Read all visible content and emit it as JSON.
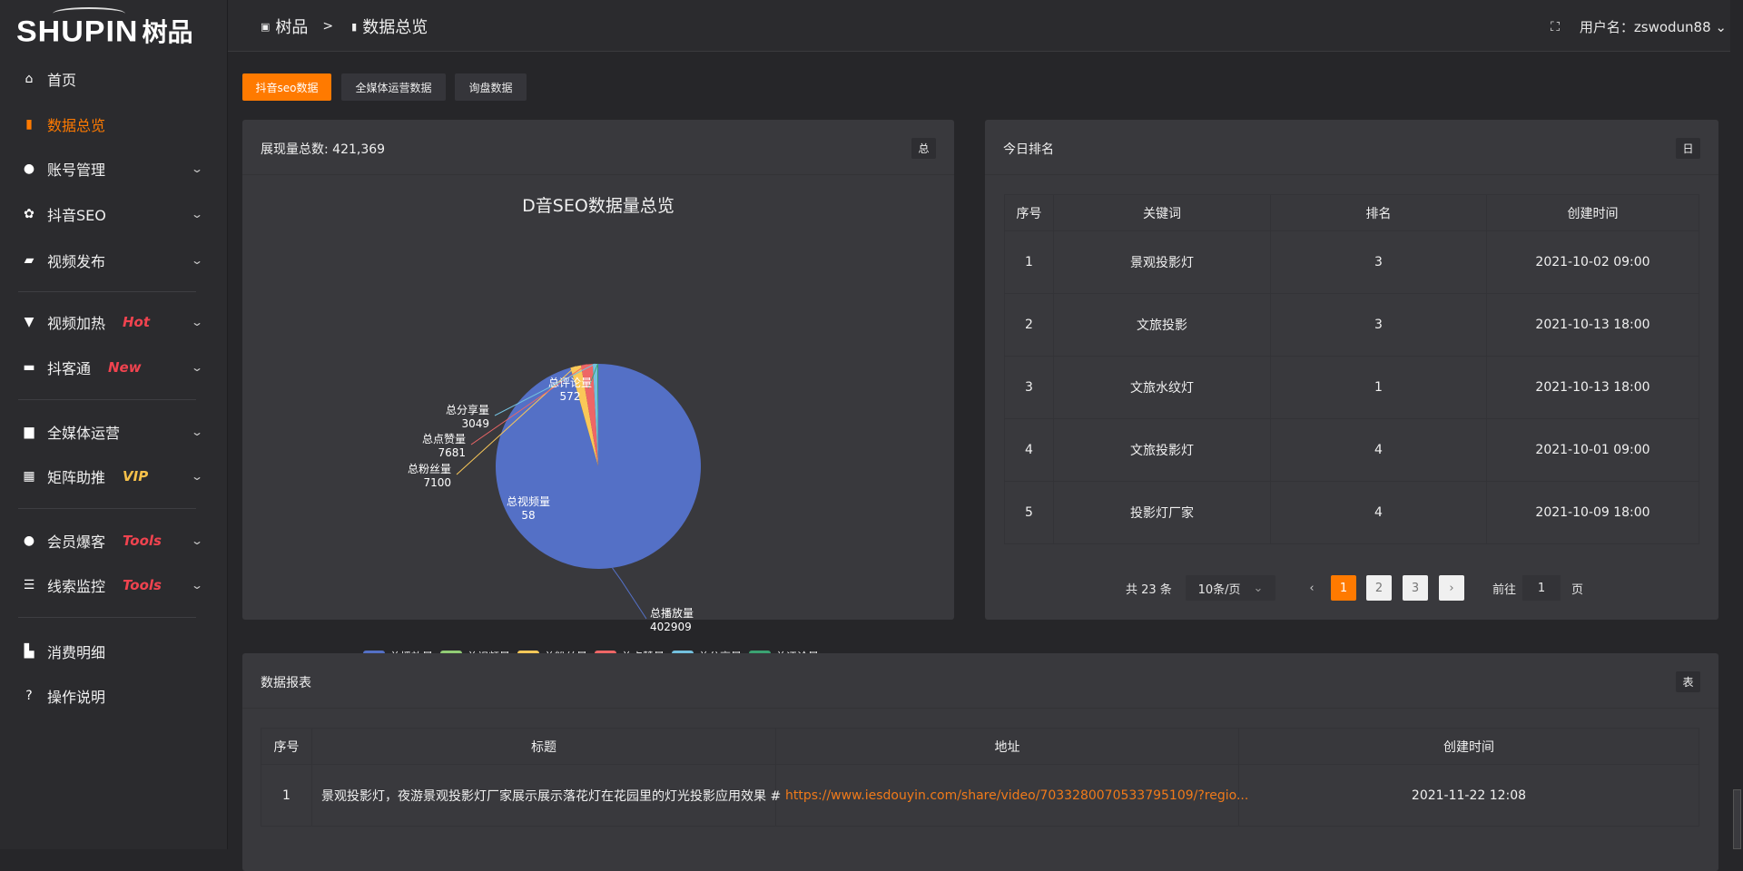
{
  "brand": {
    "logo_latin": "SHUPIN",
    "logo_cn": "树品"
  },
  "sidebar": {
    "items": [
      {
        "label": "首页",
        "icon": "home-icon",
        "glyph": "⌂"
      },
      {
        "label": "数据总览",
        "icon": "bar-chart-icon",
        "glyph": "▮"
      },
      {
        "label": "账号管理",
        "icon": "user-icon",
        "glyph": "●"
      },
      {
        "label": "抖音SEO",
        "icon": "gear-icon",
        "glyph": "✿"
      },
      {
        "label": "视频发布",
        "icon": "camera-icon",
        "glyph": "▰"
      },
      {
        "label": "视频加热",
        "icon": "sign-icon",
        "glyph": "▼",
        "badge": "Hot"
      },
      {
        "label": "抖客通",
        "icon": "chat-icon",
        "glyph": "▬",
        "badge": "New"
      },
      {
        "label": "全媒体运营",
        "icon": "monitor-icon",
        "glyph": "▆"
      },
      {
        "label": "矩阵助推",
        "icon": "grid-icon",
        "glyph": "▦",
        "badge": "VIP"
      },
      {
        "label": "会员爆客",
        "icon": "user-icon",
        "glyph": "●",
        "badge": "Tools"
      },
      {
        "label": "线索监控",
        "icon": "sliders-icon",
        "glyph": "☰",
        "badge": "Tools"
      },
      {
        "label": "消费明细",
        "icon": "wallet-icon",
        "glyph": "▙"
      },
      {
        "label": "操作说明",
        "icon": "help-icon",
        "glyph": "?"
      }
    ]
  },
  "header": {
    "breadcrumb": [
      "树品",
      "数据总览"
    ],
    "separator": ">",
    "username_label": "用户名：zswodun88"
  },
  "tabs": [
    "抖音seo数据",
    "全媒体运营数据",
    "询盘数据"
  ],
  "colors": {
    "accent": "#ff7a00",
    "badge_red": "#f0434f",
    "badge_vip": "#f5c04a",
    "link": "#f07a1a"
  },
  "overview_card": {
    "title": "展现量总数: 421,369",
    "button": "总"
  },
  "chart_data": {
    "type": "pie",
    "title": "D音SEO数据量总览",
    "legend_position": "bottom",
    "categories": [
      "总播放量",
      "总视频量",
      "总粉丝量",
      "总点赞量",
      "总分享量",
      "总评论量"
    ],
    "values": [
      402909,
      58,
      7100,
      7681,
      3049,
      572
    ],
    "colors": [
      "#5470c6",
      "#91cc75",
      "#fac858",
      "#ee6666",
      "#73c0de",
      "#3ba272"
    ]
  },
  "ranking_card": {
    "title": "今日排名",
    "button": "日",
    "columns": [
      "序号",
      "关键词",
      "排名",
      "创建时间"
    ],
    "rows": [
      [
        "1",
        "景观投影灯",
        "3",
        "2021-10-02 09:00"
      ],
      [
        "2",
        "文旅投影",
        "3",
        "2021-10-13 18:00"
      ],
      [
        "3",
        "文旅水纹灯",
        "1",
        "2021-10-13 18:00"
      ],
      [
        "4",
        "文旅投影灯",
        "4",
        "2021-10-01 09:00"
      ],
      [
        "5",
        "投影灯厂家",
        "4",
        "2021-10-09 18:00"
      ]
    ],
    "pagination": {
      "total": "共 23 条",
      "page_size": "10条/页",
      "pages": [
        "1",
        "2",
        "3"
      ],
      "current": "1",
      "goto_label": "前往",
      "goto_value": "1",
      "page_suffix": "页"
    }
  },
  "report_card": {
    "title": "数据报表",
    "button": "表",
    "columns": [
      "序号",
      "标题",
      "地址",
      "创建时间"
    ],
    "rows": [
      [
        "1",
        "景观投影灯，夜游景观投影灯厂家展示展示落花灯在花园里的灯光投影应用效果 #",
        "https://www.iesdouyin.com/share/video/7033280070533795109/?regio...",
        "2021-11-22 12:08"
      ]
    ]
  }
}
